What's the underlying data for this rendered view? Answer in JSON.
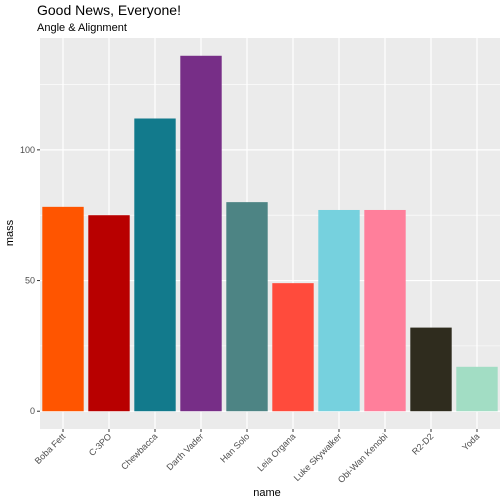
{
  "chart_data": {
    "type": "bar",
    "title": "Good News, Everyone!",
    "subtitle": "Angle & Alignment",
    "xlabel": "name",
    "ylabel": "mass",
    "categories": [
      "Boba Fett",
      "C-3PO",
      "Chewbacca",
      "Darth Vader",
      "Han Solo",
      "Leia Organa",
      "Luke Skywalker",
      "Obi-Wan Kenobi",
      "R2-D2",
      "Yoda"
    ],
    "values": [
      78.2,
      75,
      112,
      136,
      80,
      49,
      77,
      77,
      32,
      17
    ],
    "colors": [
      "#FF5500",
      "#B80000",
      "#127A8C",
      "#772E87",
      "#4D8484",
      "#FF4B3C",
      "#76D1DE",
      "#FF7F9B",
      "#2F2C1E",
      "#A2DDC4"
    ],
    "yticks": [
      0,
      50,
      100
    ],
    "ylim": [
      -6.8,
      142.8
    ],
    "grid": true,
    "legend": "none",
    "panel_background": "#EBEBEB"
  }
}
